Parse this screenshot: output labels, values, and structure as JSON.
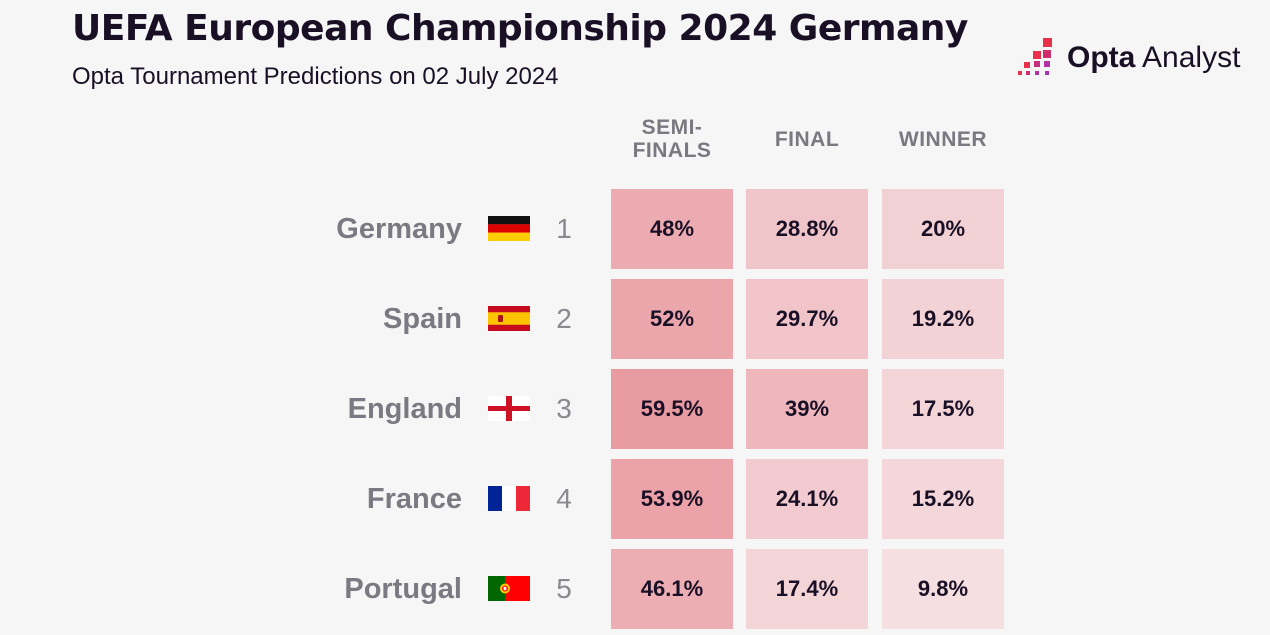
{
  "header": {
    "title": "UEFA European Championship 2024 Germany",
    "subtitle": "Opta Tournament Predictions on 02 July 2024",
    "logo_text_bold": "Opta",
    "logo_text_light": "Analyst"
  },
  "chart_data": {
    "type": "table",
    "title": "UEFA European Championship 2024 Germany",
    "subtitle": "Opta Tournament Predictions on 02 July 2024",
    "columns": [
      "SEMI-\nFINALS",
      "FINAL",
      "WINNER"
    ],
    "column_labels": [
      "SEMI-FINALS",
      "FINAL",
      "WINNER"
    ],
    "rows": [
      {
        "team": "Germany",
        "rank": "1",
        "flag": "germany-flag",
        "values": [
          48,
          28.8,
          20
        ],
        "labels": [
          "48%",
          "28.8%",
          "20%"
        ]
      },
      {
        "team": "Spain",
        "rank": "2",
        "flag": "spain-flag",
        "values": [
          52,
          29.7,
          19.2
        ],
        "labels": [
          "52%",
          "29.7%",
          "19.2%"
        ]
      },
      {
        "team": "England",
        "rank": "3",
        "flag": "england-flag",
        "values": [
          59.5,
          39,
          17.5
        ],
        "labels": [
          "59.5%",
          "39%",
          "17.5%"
        ]
      },
      {
        "team": "France",
        "rank": "4",
        "flag": "france-flag",
        "values": [
          53.9,
          24.1,
          15.2
        ],
        "labels": [
          "53.9%",
          "24.1%",
          "15.2%"
        ]
      },
      {
        "team": "Portugal",
        "rank": "5",
        "flag": "portugal-flag",
        "values": [
          46.1,
          17.4,
          9.8
        ],
        "labels": [
          "46.1%",
          "17.4%",
          "9.8%"
        ]
      }
    ],
    "color_scale": {
      "low": "#f7eced",
      "high": "#e8949b",
      "min": 0,
      "max": 65
    }
  }
}
